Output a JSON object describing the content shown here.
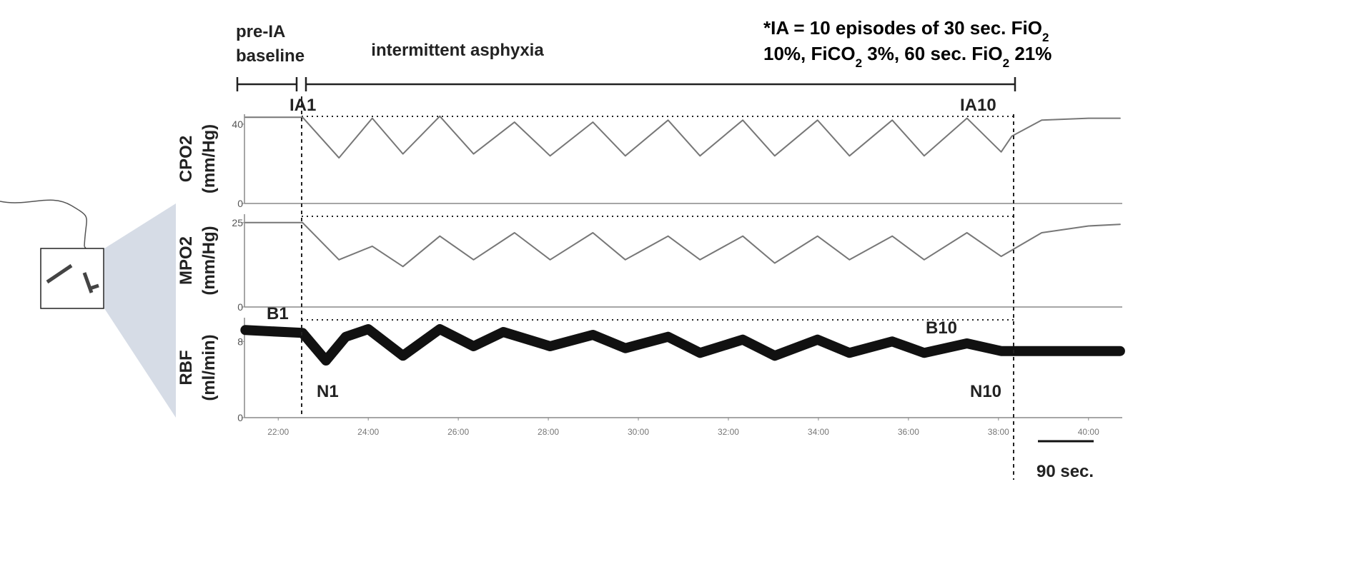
{
  "annotations": {
    "phase_pre": [
      "pre-IA",
      "baseline"
    ],
    "phase_ia": "intermittent asphyxia",
    "note_lines": [
      [
        "*IA = 10 episodes of 30 sec. FiO",
        "2"
      ],
      [
        "10%, FiCO",
        "2",
        " 3%, 60 sec. FiO",
        "2",
        " 21%"
      ]
    ],
    "ia_first": "IA1",
    "ia_last": "IA10",
    "b_first": "B1",
    "b_last": "B10",
    "n_first": "N1",
    "n_last": "N10",
    "scale": "90 sec."
  },
  "chart_data": [
    {
      "type": "line",
      "ylabel": [
        "CPO2",
        "(mm/Hg)"
      ],
      "color": "#777777",
      "x": [
        21.27,
        22.54,
        23.35,
        24.09,
        24.77,
        25.59,
        26.34,
        27.25,
        28.04,
        28.99,
        29.71,
        30.66,
        31.37,
        32.32,
        33.03,
        33.98,
        34.69,
        35.64,
        36.35,
        37.3,
        38.06,
        38.3,
        38.96,
        40,
        40.7
      ],
      "values": [
        43.5,
        43.5,
        23,
        43,
        25,
        44,
        25,
        41,
        24,
        41,
        24,
        42,
        24,
        42,
        24,
        42,
        24,
        42,
        24,
        43,
        26,
        34,
        42,
        43,
        43
      ],
      "xlim": [
        21.25,
        40.75
      ],
      "ylim": [
        0,
        45
      ],
      "yticks": [
        0,
        40
      ]
    },
    {
      "type": "line",
      "ylabel": [
        "MPO2",
        "(mm/Hg)"
      ],
      "color": "#777777",
      "x": [
        21.27,
        22.54,
        23.35,
        24.09,
        24.77,
        25.59,
        26.34,
        27.25,
        28.04,
        28.99,
        29.71,
        30.66,
        31.37,
        32.32,
        33.03,
        33.98,
        34.69,
        35.64,
        36.35,
        37.3,
        38.06,
        38.96,
        40,
        40.7
      ],
      "values": [
        25,
        25,
        14,
        18,
        12,
        21,
        14,
        22,
        14,
        22,
        14,
        21,
        14,
        21,
        13,
        21,
        14,
        21,
        14,
        22,
        15,
        22,
        24,
        24.5
      ],
      "xlim": [
        21.25,
        40.75
      ],
      "ylim": [
        0,
        27.5
      ],
      "yticks": [
        0,
        25
      ]
    },
    {
      "type": "line",
      "ylabel": [
        "RBF",
        "(ml/min)"
      ],
      "color": "#111111",
      "x": [
        21.27,
        22.54,
        23.06,
        23.5,
        24.0,
        24.77,
        25.59,
        26.34,
        27.0,
        28.04,
        28.99,
        29.71,
        30.66,
        31.37,
        32.32,
        33.03,
        33.98,
        34.69,
        35.64,
        36.35,
        37.3,
        38.06,
        40,
        40.7
      ],
      "values": [
        9.2,
        8.9,
        6,
        8.5,
        9.3,
        6.5,
        9.3,
        7.5,
        9,
        7.5,
        8.7,
        7.3,
        8.5,
        6.8,
        8.2,
        6.5,
        8.2,
        6.8,
        8,
        6.8,
        7.8,
        7,
        7,
        7
      ],
      "xlim": [
        21.25,
        40.75
      ],
      "ylim": [
        0,
        10.5
      ],
      "yticks": [
        0,
        8
      ],
      "xticks": [
        {
          "value": 22,
          "label": "22:00"
        },
        {
          "value": 24,
          "label": "24:00"
        },
        {
          "value": 26,
          "label": "26:00"
        },
        {
          "value": 28,
          "label": "28:00"
        },
        {
          "value": 30,
          "label": "30:00"
        },
        {
          "value": 32,
          "label": "32:00"
        },
        {
          "value": 34,
          "label": "34:00"
        },
        {
          "value": 36,
          "label": "36:00"
        },
        {
          "value": 38,
          "label": "38:00"
        },
        {
          "value": 40,
          "label": "40:00"
        }
      ]
    }
  ]
}
